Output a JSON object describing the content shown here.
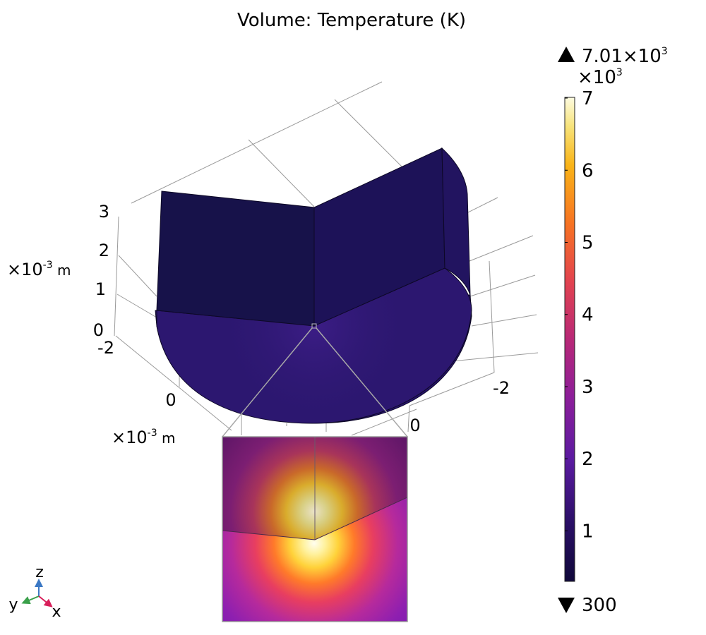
{
  "chart_data": {
    "type": "3d-volume",
    "title": "Volume: Temperature (K)",
    "colorbar": {
      "max_label": "7.01×10",
      "max_exp": "3",
      "multiplier": "×10",
      "multiplier_exp": "3",
      "ticks": [
        "7",
        "6",
        "5",
        "4",
        "3",
        "2",
        "1"
      ],
      "tick_values": [
        7,
        6,
        5,
        4,
        3,
        2,
        1
      ],
      "min_label": "300",
      "range": [
        0.3,
        7.01
      ],
      "colormap": "inferno-like"
    },
    "z_axis": {
      "ticks": [
        "3",
        "2",
        "1",
        "0"
      ],
      "unit_prefix": "×10",
      "unit_exp": "-3",
      "unit": " m"
    },
    "y_axis": {
      "ticks": [
        "-2",
        "0"
      ],
      "unit_prefix": "×10",
      "unit_exp": "-3",
      "unit": " m"
    },
    "x_axis": {
      "ticks": [
        "-2",
        "0"
      ]
    },
    "triad": {
      "z": "z",
      "y": "y",
      "x": "x"
    },
    "colors": {
      "wall_left": "#17124a",
      "wall_right": "#1d1258",
      "wall_right_edge": "#221460",
      "base_top": "#2c1770",
      "base_side": "#26136a",
      "hot_spot": "#fffde0",
      "triad_z": "#3b78c4",
      "triad_y": "#3aa04a",
      "triad_x": "#d81f5a"
    }
  }
}
